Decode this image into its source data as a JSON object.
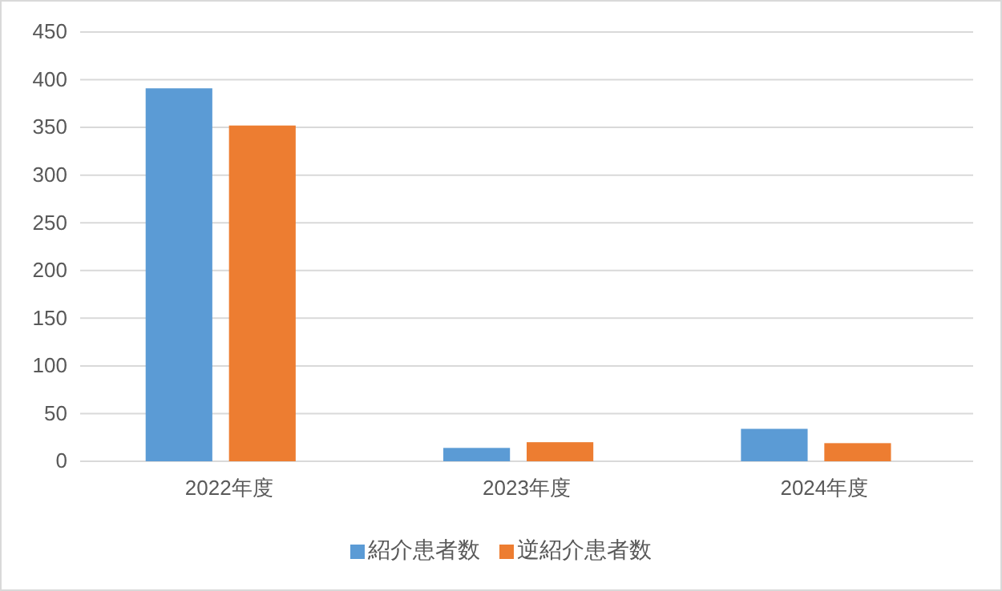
{
  "chart_data": {
    "type": "bar",
    "categories": [
      "2022年度",
      "2023年度",
      "2024年度"
    ],
    "series": [
      {
        "name": "紹介患者数",
        "color": "#5b9bd5",
        "values": [
          391,
          14,
          34
        ]
      },
      {
        "name": "逆紹介患者数",
        "color": "#ed7d31",
        "values": [
          352,
          20,
          19
        ]
      }
    ],
    "ylim": [
      0,
      450
    ],
    "yticks": [
      0,
      50,
      100,
      150,
      200,
      250,
      300,
      350,
      400,
      450
    ],
    "grid": "y",
    "legend": "bottom"
  }
}
